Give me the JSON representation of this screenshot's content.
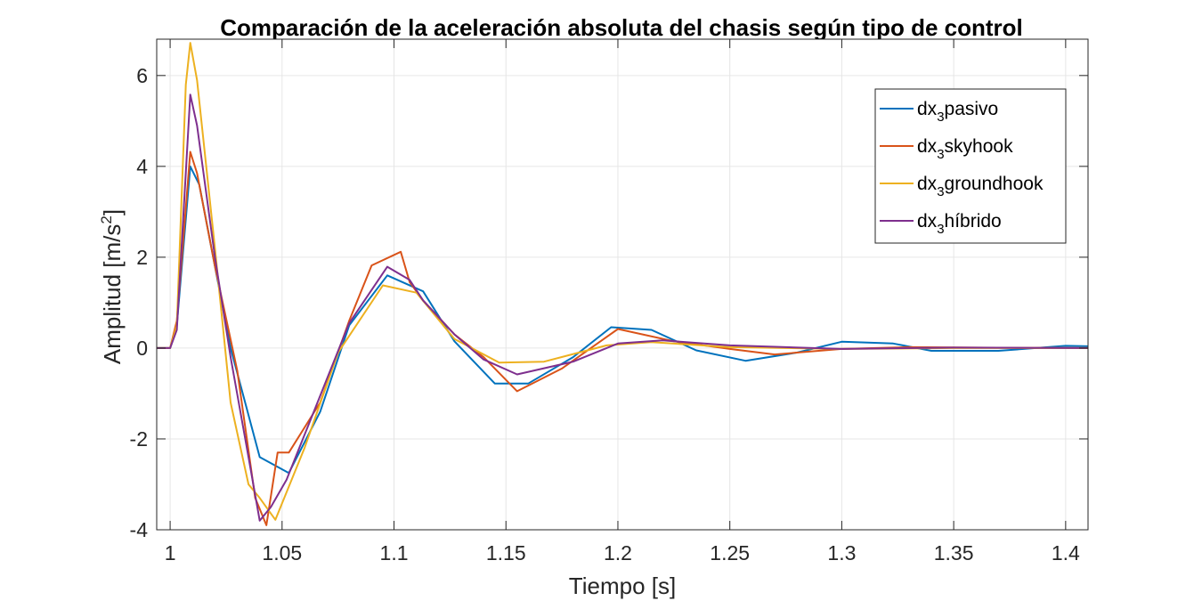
{
  "chart_data": {
    "type": "line",
    "title": "Comparación de la aceleración absoluta del chasis según tipo de control",
    "xlabel": "Tiempo [s]",
    "ylabel": "Amplitud [m/s",
    "ylabel_sup": "2",
    "ylabel_end": "]",
    "xlim": [
      0.994,
      1.41
    ],
    "ylim": [
      -4,
      6.8
    ],
    "xticks": [
      1,
      1.05,
      1.1,
      1.15,
      1.2,
      1.25,
      1.3,
      1.35,
      1.4
    ],
    "xtick_labels": [
      "1",
      "1.05",
      "1.1",
      "1.15",
      "1.2",
      "1.25",
      "1.3",
      "1.35",
      "1.4"
    ],
    "yticks": [
      -4,
      -2,
      0,
      2,
      4,
      6
    ],
    "ytick_labels": [
      "-4",
      "-2",
      "0",
      "2",
      "4",
      "6"
    ],
    "grid": true,
    "legend_position": "top-right",
    "series": [
      {
        "name_main": "dx",
        "name_sub": "3",
        "name_rest": "pasivo",
        "color": "#0072BD",
        "x": [
          0.994,
          1.0,
          1.003,
          1.009,
          1.013,
          1.02,
          1.027,
          1.04,
          1.053,
          1.067,
          1.08,
          1.097,
          1.113,
          1.127,
          1.145,
          1.16,
          1.18,
          1.197,
          1.215,
          1.235,
          1.257,
          1.28,
          1.3,
          1.323,
          1.34,
          1.37,
          1.4,
          1.41
        ],
        "y": [
          0,
          0,
          0.5,
          4.0,
          3.6,
          1.8,
          0.0,
          -2.4,
          -2.75,
          -1.4,
          0.5,
          1.6,
          1.25,
          0.15,
          -0.78,
          -0.78,
          -0.2,
          0.46,
          0.4,
          -0.05,
          -0.28,
          -0.1,
          0.14,
          0.1,
          -0.06,
          -0.06,
          0.05,
          0.04
        ]
      },
      {
        "name_main": "dx",
        "name_sub": "3",
        "name_rest": "skyhook",
        "color": "#D95319",
        "x": [
          0.994,
          1.0,
          1.003,
          1.009,
          1.012,
          1.02,
          1.03,
          1.038,
          1.043,
          1.048,
          1.053,
          1.067,
          1.08,
          1.09,
          1.103,
          1.107,
          1.113,
          1.127,
          1.14,
          1.155,
          1.175,
          1.2,
          1.225,
          1.25,
          1.27,
          1.3,
          1.33,
          1.36,
          1.41
        ],
        "y": [
          0,
          0,
          0.6,
          4.32,
          3.85,
          1.8,
          -0.5,
          -3.3,
          -3.9,
          -2.3,
          -2.3,
          -1.2,
          0.6,
          1.82,
          2.12,
          1.45,
          1.05,
          0.3,
          -0.2,
          -0.95,
          -0.45,
          0.42,
          0.15,
          -0.02,
          -0.14,
          -0.02,
          0.02,
          0.01,
          0
        ]
      },
      {
        "name_main": "dx",
        "name_sub": "3",
        "name_rest": "groundhook",
        "color": "#EDB120",
        "x": [
          0.994,
          1.0,
          1.003,
          1.007,
          1.009,
          1.012,
          1.02,
          1.027,
          1.035,
          1.04,
          1.047,
          1.06,
          1.075,
          1.095,
          1.11,
          1.127,
          1.147,
          1.167,
          1.195,
          1.215,
          1.25,
          1.3,
          1.35,
          1.41
        ],
        "y": [
          0,
          0,
          0.5,
          5.8,
          6.72,
          5.9,
          2.2,
          -1.2,
          -3.0,
          -3.3,
          -3.78,
          -2.2,
          -0.1,
          1.38,
          1.22,
          0.2,
          -0.32,
          -0.3,
          0.06,
          0.13,
          0.02,
          -0.02,
          0.0,
          0
        ]
      },
      {
        "name_main": "dx",
        "name_sub": "3",
        "name_rest": "híbrido",
        "color": "#7E2F8E",
        "x": [
          0.994,
          1.0,
          1.003,
          1.009,
          1.012,
          1.02,
          1.027,
          1.035,
          1.04,
          1.045,
          1.052,
          1.065,
          1.08,
          1.097,
          1.107,
          1.113,
          1.127,
          1.14,
          1.155,
          1.18,
          1.2,
          1.22,
          1.25,
          1.3,
          1.35,
          1.41
        ],
        "y": [
          0,
          0,
          0.4,
          5.58,
          4.9,
          2.0,
          -0.2,
          -2.4,
          -3.8,
          -3.5,
          -2.9,
          -1.3,
          0.55,
          1.79,
          1.5,
          1.05,
          0.3,
          -0.25,
          -0.58,
          -0.3,
          0.1,
          0.17,
          0.06,
          -0.02,
          0.01,
          0
        ]
      }
    ]
  }
}
